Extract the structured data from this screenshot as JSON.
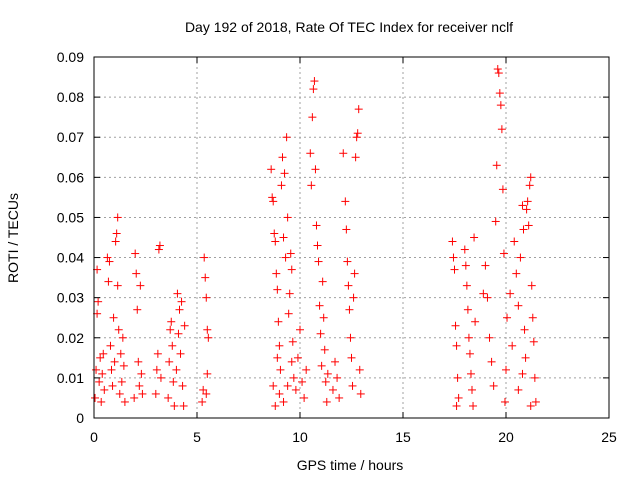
{
  "chart_data": {
    "type": "scatter",
    "title": "Day 192 of 2018, Rate Of TEC Index for receiver nclf",
    "xlabel": "GPS time / hours",
    "ylabel": "ROTI / TECUs",
    "xlim": [
      0,
      25
    ],
    "ylim": [
      0,
      0.09
    ],
    "xticks": [
      0,
      5,
      10,
      15,
      20,
      25
    ],
    "yticks": [
      0,
      0.01,
      0.02,
      0.03,
      0.04,
      0.05,
      0.06,
      0.07,
      0.08,
      0.09
    ],
    "xtick_labels": [
      "0",
      "5",
      "10",
      "15",
      "20",
      "25"
    ],
    "ytick_labels": [
      "0",
      "0.01",
      "0.02",
      "0.03",
      "0.04",
      "0.05",
      "0.06",
      "0.07",
      "0.08",
      "0.09"
    ],
    "grid": true,
    "marker": "+",
    "marker_color": "#ff0000",
    "series": [
      {
        "name": "ROTI",
        "points": [
          [
            0.05,
            0.005
          ],
          [
            0.1,
            0.012
          ],
          [
            0.15,
            0.026
          ],
          [
            0.15,
            0.037
          ],
          [
            0.2,
            0.029
          ],
          [
            0.25,
            0.009
          ],
          [
            0.3,
            0.015
          ],
          [
            0.35,
            0.004
          ],
          [
            0.4,
            0.011
          ],
          [
            0.45,
            0.016
          ],
          [
            0.5,
            0.007
          ],
          [
            0.65,
            0.04
          ],
          [
            0.7,
            0.034
          ],
          [
            0.75,
            0.039
          ],
          [
            0.8,
            0.018
          ],
          [
            0.85,
            0.012
          ],
          [
            0.9,
            0.008
          ],
          [
            0.95,
            0.025
          ],
          [
            1.0,
            0.014
          ],
          [
            1.05,
            0.044
          ],
          [
            1.1,
            0.046
          ],
          [
            1.15,
            0.05
          ],
          [
            1.15,
            0.033
          ],
          [
            1.2,
            0.022
          ],
          [
            1.25,
            0.006
          ],
          [
            1.3,
            0.016
          ],
          [
            1.35,
            0.009
          ],
          [
            1.4,
            0.02
          ],
          [
            1.45,
            0.013
          ],
          [
            1.5,
            0.004
          ],
          [
            1.95,
            0.005
          ],
          [
            2.0,
            0.041
          ],
          [
            2.05,
            0.036
          ],
          [
            2.1,
            0.027
          ],
          [
            2.15,
            0.014
          ],
          [
            2.2,
            0.008
          ],
          [
            2.25,
            0.033
          ],
          [
            2.3,
            0.011
          ],
          [
            2.35,
            0.006
          ],
          [
            3.0,
            0.006
          ],
          [
            3.05,
            0.012
          ],
          [
            3.1,
            0.016
          ],
          [
            3.15,
            0.042
          ],
          [
            3.2,
            0.043
          ],
          [
            3.25,
            0.01
          ],
          [
            3.6,
            0.005
          ],
          [
            3.65,
            0.014
          ],
          [
            3.7,
            0.022
          ],
          [
            3.75,
            0.024
          ],
          [
            3.8,
            0.018
          ],
          [
            3.85,
            0.009
          ],
          [
            3.9,
            0.003
          ],
          [
            4.0,
            0.012
          ],
          [
            4.05,
            0.031
          ],
          [
            4.1,
            0.021
          ],
          [
            4.15,
            0.027
          ],
          [
            4.2,
            0.016
          ],
          [
            4.25,
            0.029
          ],
          [
            4.3,
            0.008
          ],
          [
            4.35,
            0.003
          ],
          [
            4.4,
            0.023
          ],
          [
            5.25,
            0.004
          ],
          [
            5.3,
            0.007
          ],
          [
            5.35,
            0.04
          ],
          [
            5.4,
            0.035
          ],
          [
            5.45,
            0.03
          ],
          [
            5.5,
            0.022
          ],
          [
            5.55,
            0.02
          ],
          [
            5.5,
            0.011
          ],
          [
            5.45,
            0.006
          ],
          [
            8.6,
            0.062
          ],
          [
            8.65,
            0.055
          ],
          [
            8.7,
            0.054
          ],
          [
            8.75,
            0.046
          ],
          [
            8.8,
            0.044
          ],
          [
            8.85,
            0.036
          ],
          [
            8.9,
            0.032
          ],
          [
            8.95,
            0.024
          ],
          [
            9.0,
            0.018
          ],
          [
            9.05,
            0.012
          ],
          [
            8.7,
            0.008
          ],
          [
            8.8,
            0.003
          ],
          [
            8.9,
            0.015
          ],
          [
            9.0,
            0.006
          ],
          [
            9.1,
            0.058
          ],
          [
            9.15,
            0.065
          ],
          [
            9.2,
            0.045
          ],
          [
            9.25,
            0.061
          ],
          [
            9.3,
            0.04
          ],
          [
            9.35,
            0.07
          ],
          [
            9.4,
            0.05
          ],
          [
            9.45,
            0.026
          ],
          [
            9.5,
            0.031
          ],
          [
            9.55,
            0.041
          ],
          [
            9.6,
            0.037
          ],
          [
            9.65,
            0.019
          ],
          [
            9.7,
            0.01
          ],
          [
            9.2,
            0.004
          ],
          [
            9.4,
            0.008
          ],
          [
            9.6,
            0.014
          ],
          [
            9.8,
            0.007
          ],
          [
            9.9,
            0.015
          ],
          [
            10.0,
            0.022
          ],
          [
            10.1,
            0.009
          ],
          [
            10.2,
            0.005
          ],
          [
            10.3,
            0.012
          ],
          [
            10.5,
            0.066
          ],
          [
            10.55,
            0.058
          ],
          [
            10.6,
            0.075
          ],
          [
            10.65,
            0.082
          ],
          [
            10.7,
            0.084
          ],
          [
            10.75,
            0.062
          ],
          [
            10.8,
            0.048
          ],
          [
            10.85,
            0.043
          ],
          [
            10.9,
            0.039
          ],
          [
            10.95,
            0.028
          ],
          [
            11.0,
            0.021
          ],
          [
            11.05,
            0.013
          ],
          [
            11.1,
            0.034
          ],
          [
            11.15,
            0.025
          ],
          [
            11.2,
            0.017
          ],
          [
            11.25,
            0.009
          ],
          [
            11.3,
            0.004
          ],
          [
            11.35,
            0.011
          ],
          [
            11.6,
            0.007
          ],
          [
            11.7,
            0.014
          ],
          [
            11.8,
            0.01
          ],
          [
            11.9,
            0.005
          ],
          [
            12.1,
            0.066
          ],
          [
            12.2,
            0.054
          ],
          [
            12.25,
            0.047
          ],
          [
            12.3,
            0.039
          ],
          [
            12.35,
            0.033
          ],
          [
            12.4,
            0.027
          ],
          [
            12.45,
            0.02
          ],
          [
            12.5,
            0.015
          ],
          [
            12.55,
            0.008
          ],
          [
            12.6,
            0.03
          ],
          [
            12.65,
            0.036
          ],
          [
            12.7,
            0.065
          ],
          [
            12.75,
            0.07
          ],
          [
            12.8,
            0.071
          ],
          [
            12.85,
            0.077
          ],
          [
            12.9,
            0.012
          ],
          [
            12.95,
            0.006
          ],
          [
            17.4,
            0.044
          ],
          [
            17.45,
            0.04
          ],
          [
            17.5,
            0.037
          ],
          [
            17.55,
            0.023
          ],
          [
            17.6,
            0.018
          ],
          [
            17.65,
            0.01
          ],
          [
            17.7,
            0.005
          ],
          [
            17.6,
            0.003
          ],
          [
            18.0,
            0.042
          ],
          [
            18.05,
            0.038
          ],
          [
            18.1,
            0.033
          ],
          [
            18.15,
            0.027
          ],
          [
            18.2,
            0.02
          ],
          [
            18.25,
            0.016
          ],
          [
            18.3,
            0.011
          ],
          [
            18.35,
            0.007
          ],
          [
            18.4,
            0.003
          ],
          [
            18.45,
            0.045
          ],
          [
            18.5,
            0.024
          ],
          [
            18.9,
            0.031
          ],
          [
            19.0,
            0.038
          ],
          [
            19.1,
            0.03
          ],
          [
            19.2,
            0.02
          ],
          [
            19.3,
            0.014
          ],
          [
            19.4,
            0.008
          ],
          [
            19.5,
            0.049
          ],
          [
            19.55,
            0.063
          ],
          [
            19.6,
            0.087
          ],
          [
            19.65,
            0.086
          ],
          [
            19.7,
            0.081
          ],
          [
            19.75,
            0.078
          ],
          [
            19.8,
            0.072
          ],
          [
            19.85,
            0.057
          ],
          [
            19.9,
            0.041
          ],
          [
            19.95,
            0.004
          ],
          [
            20.0,
            0.012
          ],
          [
            20.05,
            0.025
          ],
          [
            20.2,
            0.031
          ],
          [
            20.3,
            0.018
          ],
          [
            20.4,
            0.044
          ],
          [
            20.5,
            0.036
          ],
          [
            20.6,
            0.028
          ],
          [
            20.7,
            0.04
          ],
          [
            20.8,
            0.053
          ],
          [
            20.85,
            0.047
          ],
          [
            20.9,
            0.022
          ],
          [
            20.95,
            0.015
          ],
          [
            21.0,
            0.052
          ],
          [
            21.05,
            0.054
          ],
          [
            21.1,
            0.048
          ],
          [
            21.15,
            0.058
          ],
          [
            21.2,
            0.06
          ],
          [
            21.25,
            0.033
          ],
          [
            21.3,
            0.025
          ],
          [
            21.35,
            0.019
          ],
          [
            21.4,
            0.01
          ],
          [
            21.45,
            0.004
          ],
          [
            20.6,
            0.007
          ],
          [
            20.8,
            0.011
          ],
          [
            21.2,
            0.003
          ]
        ]
      }
    ]
  }
}
